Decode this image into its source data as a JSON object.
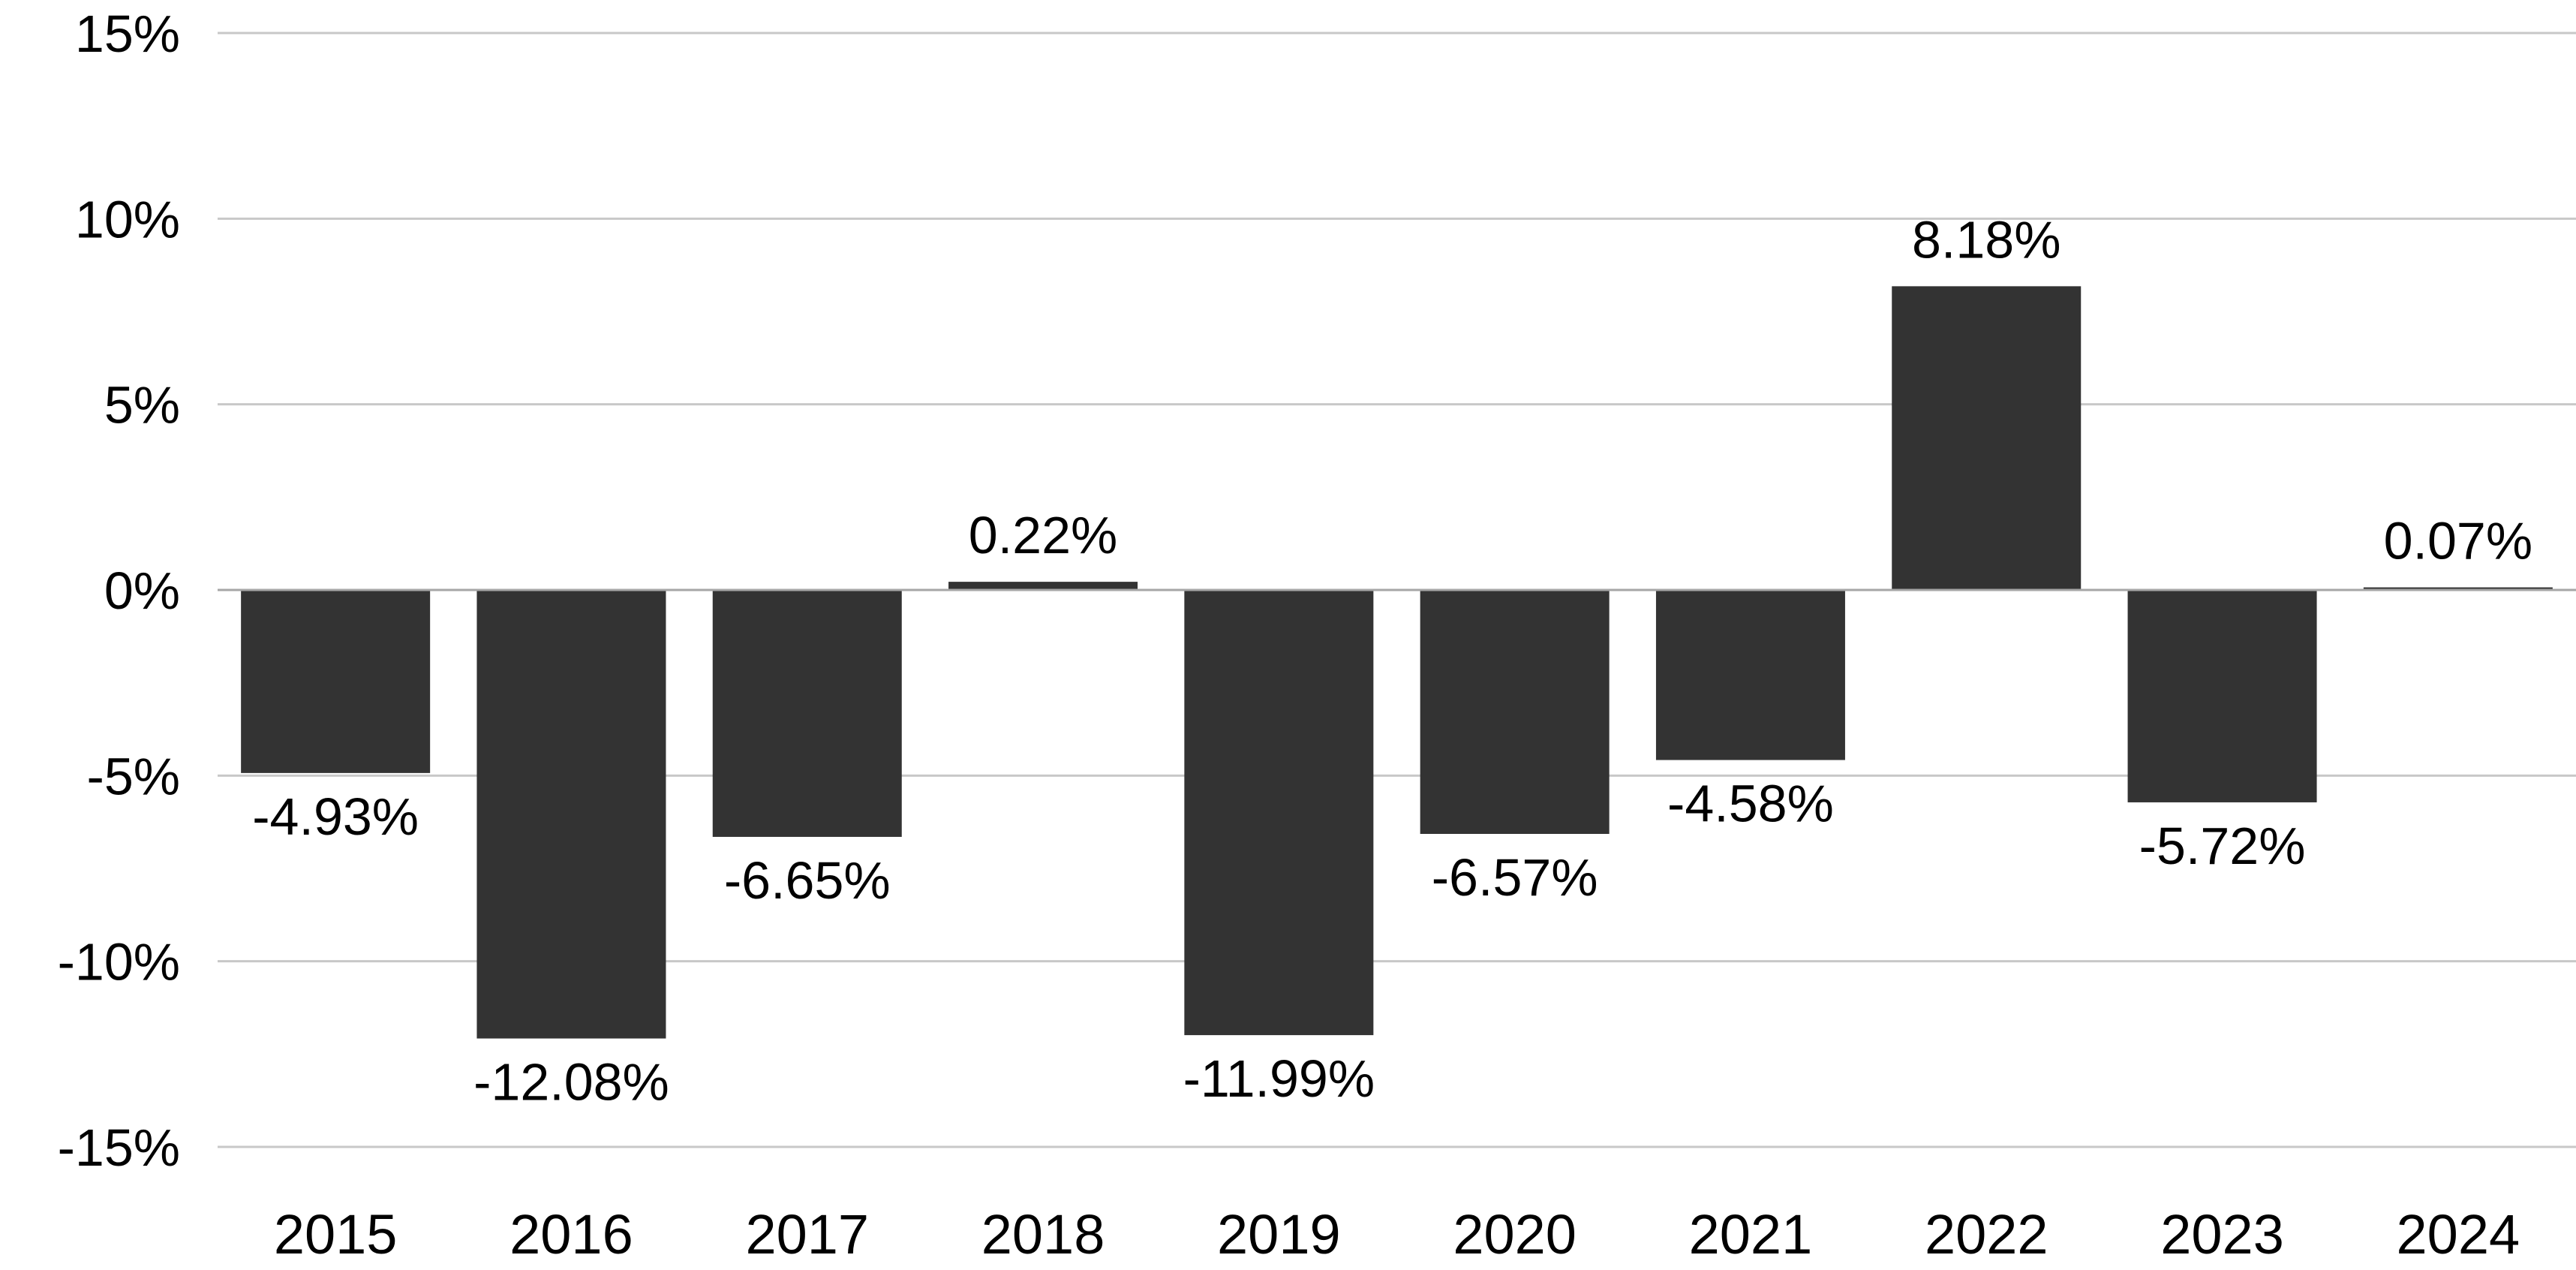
{
  "chart_data": {
    "type": "bar",
    "title": "",
    "xlabel": "",
    "ylabel": "",
    "categories": [
      "2015",
      "2016",
      "2017",
      "2018",
      "2019",
      "2020",
      "2021",
      "2022",
      "2023",
      "2024"
    ],
    "values": [
      -4.93,
      -12.08,
      -6.65,
      0.22,
      -11.99,
      -6.57,
      -4.58,
      8.18,
      -5.72,
      0.07
    ],
    "data_labels": [
      "-4.93%",
      "-12.08%",
      "-6.65%",
      "0.22%",
      "-11.99%",
      "-6.57%",
      "-4.58%",
      "8.18%",
      "-5.72%",
      "0.07%"
    ],
    "ylim": [
      -15,
      15
    ],
    "y_ticks": [
      15,
      10,
      5,
      0,
      -5,
      -10,
      -15
    ],
    "y_tick_labels": [
      "15%",
      "10%",
      "5%",
      "0%",
      "-5%",
      "-10%",
      "-15%"
    ],
    "grid": true,
    "legend": "none",
    "bar_color": "#333333"
  }
}
